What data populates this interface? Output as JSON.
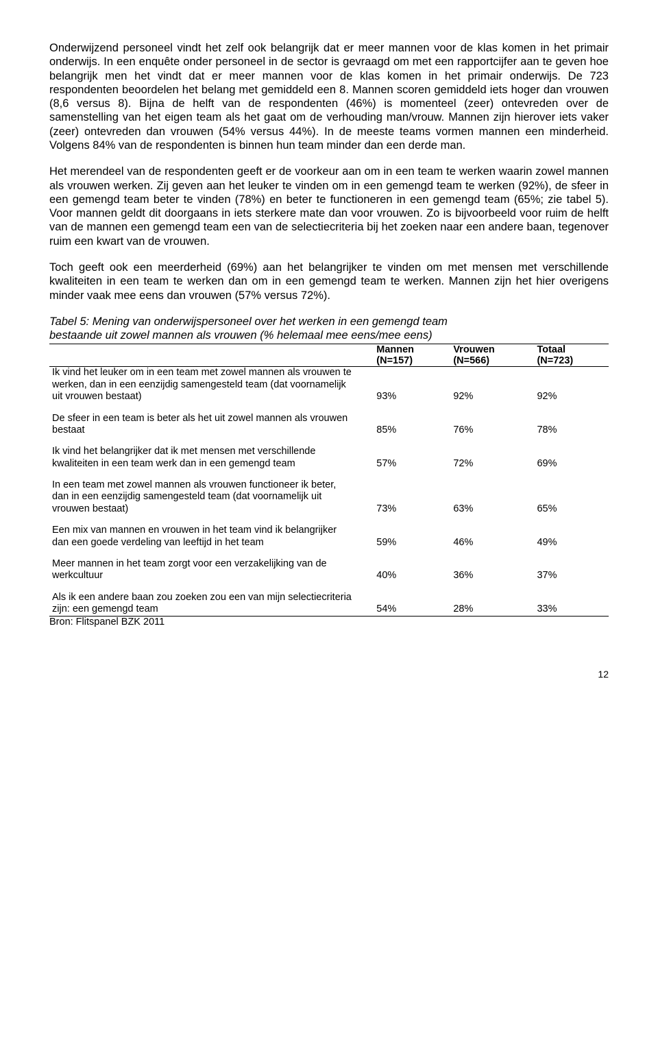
{
  "paragraphs": {
    "p1": "Onderwijzend personeel vindt het zelf ook belangrijk dat er meer mannen voor de klas komen in het primair onderwijs. In een enquête onder personeel in de sector is gevraagd om met een rapportcijfer aan te geven hoe belangrijk men het vindt dat er meer mannen voor de klas komen in het primair onderwijs. De 723 respondenten beoordelen het belang met gemiddeld een 8. Mannen scoren gemiddeld iets hoger dan vrouwen (8,6 versus 8). Bijna de helft van de respondenten (46%) is momenteel (zeer) ontevreden over de samenstelling van het eigen team als het gaat om de verhouding man/vrouw. Mannen zijn hierover iets vaker (zeer) ontevreden dan vrouwen (54% versus 44%). In de meeste teams vormen mannen een minderheid. Volgens 84% van de respondenten is binnen hun team minder dan een derde man.",
    "p2": "Het merendeel van de respondenten geeft er de voorkeur aan om in een team te werken waarin zowel mannen als vrouwen werken. Zij geven aan het leuker te vinden om in een gemengd team te werken (92%), de sfeer in een gemengd team beter te vinden (78%) en beter te functioneren in een gemengd team (65%; zie tabel 5). Voor mannen geldt dit doorgaans in iets sterkere mate dan voor vrouwen. Zo is bijvoorbeeld voor ruim de helft van de mannen een gemengd team een van de selectiecriteria bij het zoeken naar een andere baan, tegenover ruim een kwart van de vrouwen.",
    "p3": "Toch geeft ook een meerderheid (69%) aan het belangrijker te vinden om met mensen met verschillende kwaliteiten in een team te werken dan om in een gemengd team te werken. Mannen zijn het hier overigens minder vaak mee eens dan vrouwen (57% versus 72%)."
  },
  "table": {
    "title_line1": "Tabel 5: Mening van onderwijspersoneel over het werken in een gemengd team",
    "title_line2": "bestaande uit zowel mannen als vrouwen (% helemaal mee eens/mee eens)",
    "headers": {
      "col1_top": "Mannen",
      "col1_bot": "(N=157)",
      "col2_top": "Vrouwen",
      "col2_bot": "(N=566)",
      "col3_top": "Totaal",
      "col3_bot": "(N=723)"
    },
    "rows": [
      {
        "label_lines": [
          "Ik vind het leuker om in een team met zowel mannen als vrouwen te",
          "werken, dan in een eenzijdig samengesteld team (dat voornamelijk",
          "uit vrouwen bestaat)"
        ],
        "v1": "93%",
        "v2": "92%",
        "v3": "92%"
      },
      {
        "label_lines": [
          "De sfeer in een team is beter als het uit zowel mannen als vrouwen",
          "bestaat"
        ],
        "v1": "85%",
        "v2": "76%",
        "v3": "78%"
      },
      {
        "label_lines": [
          "Ik vind het belangrijker dat ik met mensen met verschillende",
          "kwaliteiten in een team werk dan in een gemengd team"
        ],
        "v1": "57%",
        "v2": "72%",
        "v3": "69%"
      },
      {
        "label_lines": [
          "In een team met zowel mannen als vrouwen functioneer ik beter,",
          "dan in een eenzijdig samengesteld team (dat voornamelijk uit",
          "vrouwen bestaat)"
        ],
        "v1": "73%",
        "v2": "63%",
        "v3": "65%"
      },
      {
        "label_lines": [
          "Een mix van mannen en vrouwen in het team vind ik belangrijker",
          "dan een goede verdeling van leeftijd in het team"
        ],
        "v1": "59%",
        "v2": "46%",
        "v3": "49%"
      },
      {
        "label_lines": [
          "Meer mannen in het team zorgt voor een verzakelijking van de",
          "werkcultuur"
        ],
        "v1": "40%",
        "v2": "36%",
        "v3": "37%"
      },
      {
        "label_lines": [
          "Als ik een andere baan zou zoeken zou een van mijn selectiecriteria",
          "zijn: een gemengd team"
        ],
        "v1": "54%",
        "v2": "28%",
        "v3": "33%"
      }
    ],
    "source": "Bron: Flitspanel BZK 2011"
  },
  "page_number": "12"
}
